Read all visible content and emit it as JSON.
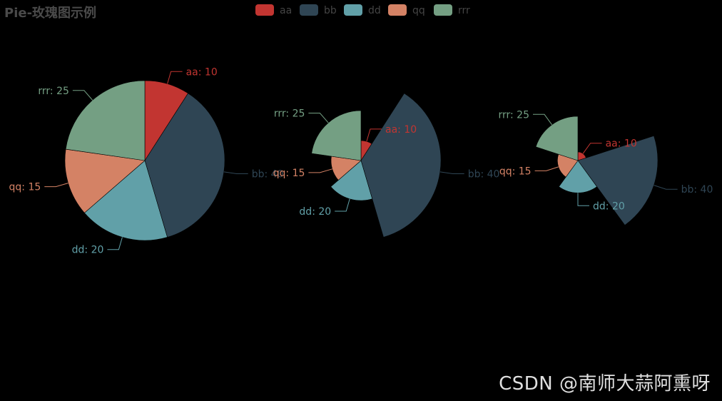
{
  "colors": {
    "background": "#000000",
    "title": "#4a4a4a",
    "legend_text": "#444444",
    "slice_border": "#000000",
    "watermark": "#e0e0e0"
  },
  "watermark": "CSDN @南师大蒜阿熏呀",
  "chart_data": {
    "type": "pie",
    "title": "Pie-玫瑰图示例",
    "legend": {
      "placement": "top-center",
      "items": [
        "aa",
        "bb",
        "dd",
        "qq",
        "rrr"
      ]
    },
    "categories": [
      "aa",
      "bb",
      "dd",
      "qq",
      "rrr"
    ],
    "colors": [
      "#c23531",
      "#2f4554",
      "#61a0a8",
      "#d48265",
      "#749f83"
    ],
    "charts": [
      {
        "variant": "pie",
        "values": [
          10,
          40,
          20,
          15,
          25
        ],
        "labels": [
          "aa: 10",
          "bb: 40",
          "dd: 20",
          "qq: 15",
          "rrr: 25"
        ]
      },
      {
        "variant": "rose-radius",
        "values": [
          10,
          40,
          20,
          15,
          25
        ],
        "labels": [
          "aa: 10",
          "bb: 40",
          "dd: 20",
          "qq: 15",
          "rrr: 25"
        ]
      },
      {
        "variant": "rose-area",
        "values": [
          10,
          40,
          20,
          15,
          25
        ],
        "labels": [
          "aa: 10",
          "bb: 40",
          "dd: 20",
          "qq: 15",
          "rrr: 25"
        ]
      }
    ]
  }
}
